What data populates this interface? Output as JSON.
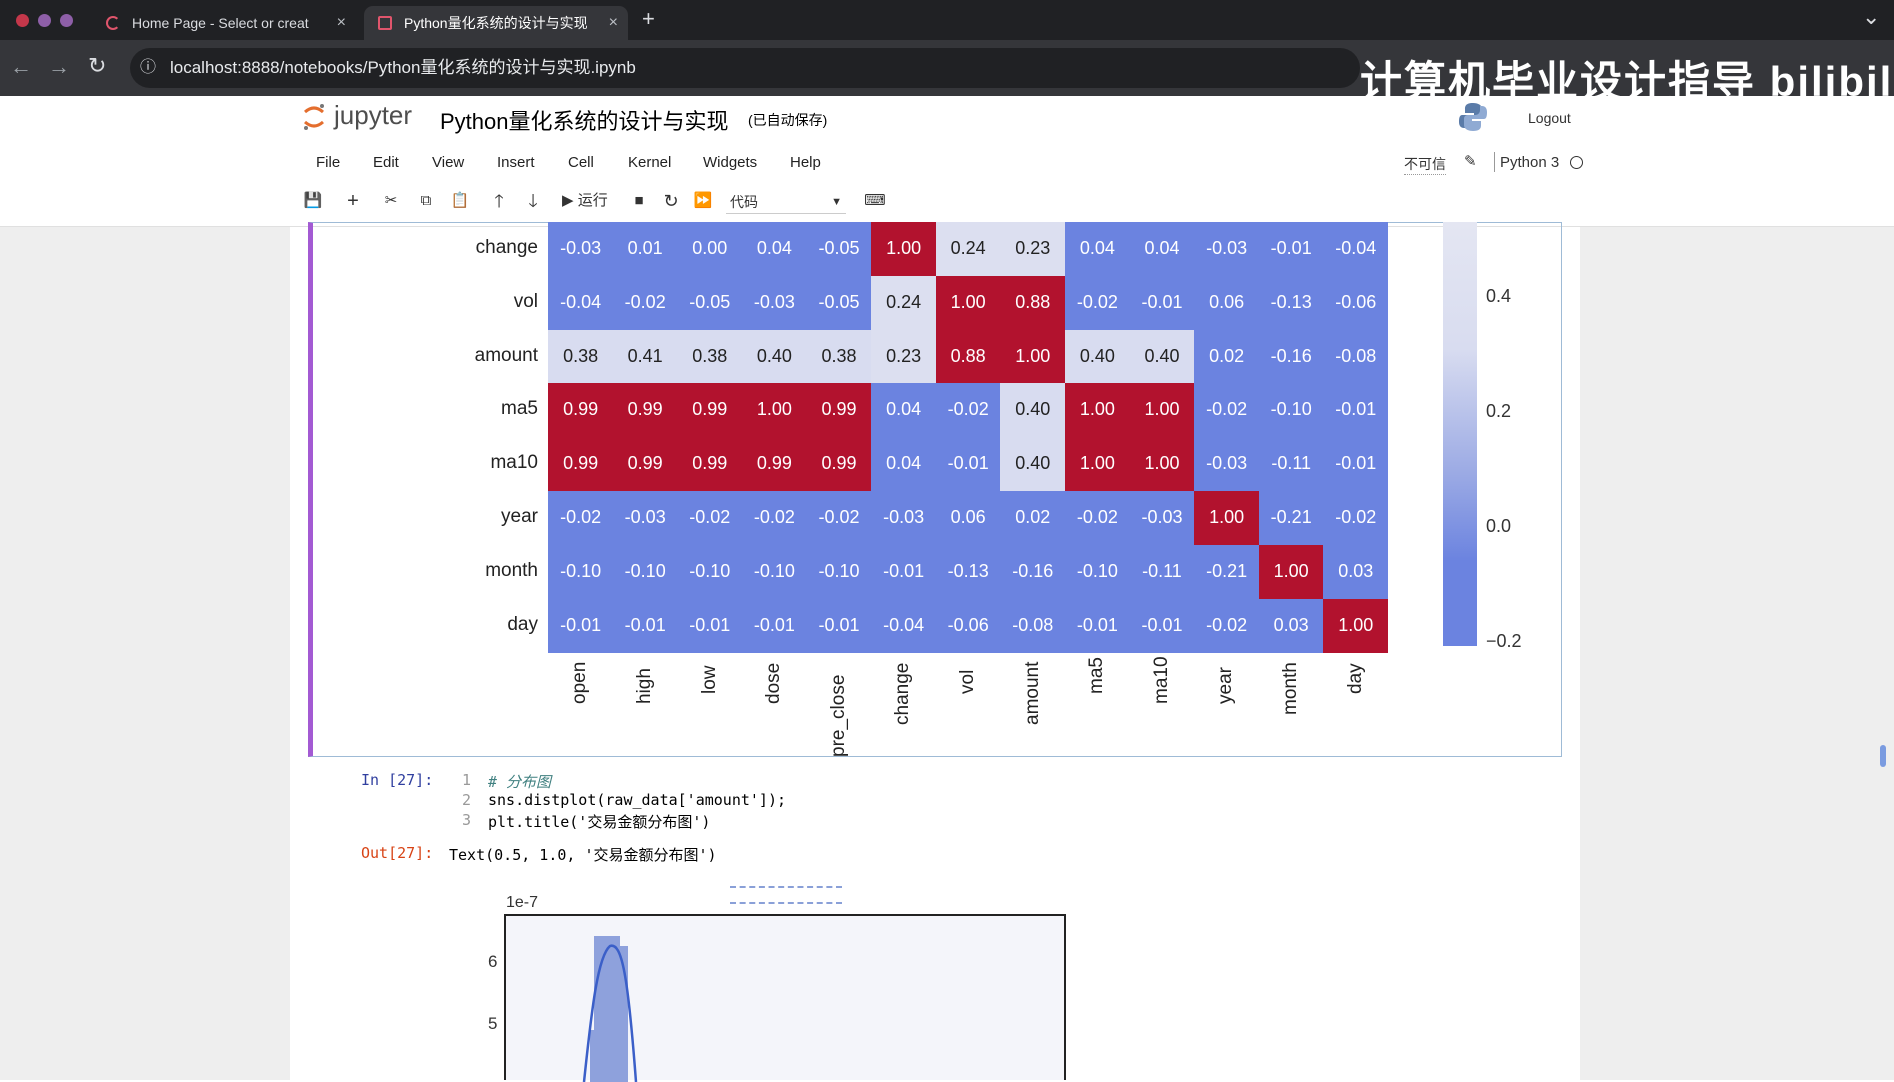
{
  "browser": {
    "tabs": [
      {
        "title": "Home Page - Select or creat",
        "active": false
      },
      {
        "title": "Python量化系统的设计与实现",
        "active": true
      }
    ],
    "url": "localhost:8888/notebooks/Python量化系统的设计与实现.ipynb",
    "new_tab": "+",
    "close": "×",
    "tab_menu": "⌄"
  },
  "watermark": "计算机毕业设计指导 bilibili",
  "jupyter": {
    "logo_text": "jupyter",
    "notebook_title": "Python量化系统的设计与实现",
    "autosave": "(已自动保存)",
    "logout": "Logout",
    "menu": [
      "File",
      "Edit",
      "View",
      "Insert",
      "Cell",
      "Kernel",
      "Widgets",
      "Help"
    ],
    "trust": "不可信",
    "kernel": "Python 3",
    "toolbar": {
      "run_label": "运行",
      "cell_type": "代码"
    }
  },
  "heatmap": {
    "rows": [
      "change",
      "vol",
      "amount",
      "ma5",
      "ma10",
      "year",
      "month",
      "day"
    ],
    "columns": [
      "open",
      "high",
      "low",
      "dose",
      "pre_close",
      "change",
      "vol",
      "amount",
      "ma5",
      "ma10",
      "year",
      "month",
      "day"
    ],
    "values": [
      [
        "-0.03",
        "0.01",
        "0.00",
        "0.04",
        "-0.05",
        "1.00",
        "0.24",
        "0.23",
        "0.04",
        "0.04",
        "-0.03",
        "-0.01",
        "-0.04"
      ],
      [
        "-0.04",
        "-0.02",
        "-0.05",
        "-0.03",
        "-0.05",
        "0.24",
        "1.00",
        "0.88",
        "-0.02",
        "-0.01",
        "0.06",
        "-0.13",
        "-0.06"
      ],
      [
        "0.38",
        "0.41",
        "0.38",
        "0.40",
        "0.38",
        "0.23",
        "0.88",
        "1.00",
        "0.40",
        "0.40",
        "0.02",
        "-0.16",
        "-0.08"
      ],
      [
        "0.99",
        "0.99",
        "0.99",
        "1.00",
        "0.99",
        "0.04",
        "-0.02",
        "0.40",
        "1.00",
        "1.00",
        "-0.02",
        "-0.10",
        "-0.01"
      ],
      [
        "0.99",
        "0.99",
        "0.99",
        "0.99",
        "0.99",
        "0.04",
        "-0.01",
        "0.40",
        "1.00",
        "1.00",
        "-0.03",
        "-0.11",
        "-0.01"
      ],
      [
        "-0.02",
        "-0.03",
        "-0.02",
        "-0.02",
        "-0.02",
        "-0.03",
        "0.06",
        "0.02",
        "-0.02",
        "-0.03",
        "1.00",
        "-0.21",
        "-0.02"
      ],
      [
        "-0.10",
        "-0.10",
        "-0.10",
        "-0.10",
        "-0.10",
        "-0.01",
        "-0.13",
        "-0.16",
        "-0.10",
        "-0.11",
        "-0.21",
        "1.00",
        "0.03"
      ],
      [
        "-0.01",
        "-0.01",
        "-0.01",
        "-0.01",
        "-0.01",
        "-0.04",
        "-0.06",
        "-0.08",
        "-0.01",
        "-0.01",
        "-0.02",
        "0.03",
        "1.00"
      ]
    ],
    "colorbar_ticks": [
      "0.4",
      "0.2",
      "0.0",
      "−0.2"
    ],
    "colors": {
      "low": "#6b83e0",
      "mid": "#d8dcf0",
      "high": "#b2122e"
    }
  },
  "cell27": {
    "in_prompt": "In [27]:",
    "lines": [
      {
        "no": "1",
        "text": "# 分布图"
      },
      {
        "no": "2",
        "text": "sns.distplot(raw_data['amount']);"
      },
      {
        "no": "3",
        "text": "plt.title('交易金额分布图')"
      }
    ],
    "out_prompt": "Out[27]:",
    "out_text": "Text(0.5, 1.0, '交易金额分布图')"
  },
  "distplot": {
    "scale_label": "1e-7",
    "yticks": [
      "6",
      "5"
    ]
  }
}
